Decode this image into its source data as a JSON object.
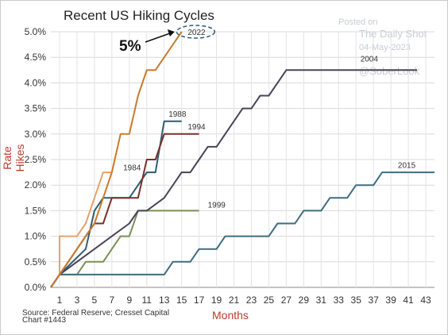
{
  "chart_data": {
    "type": "line",
    "title": "Recent US Hiking Cycles",
    "xlabel": "Months",
    "ylabel": "Rate Hikes",
    "xlim": [
      0,
      44
    ],
    "ylim": [
      0,
      5
    ],
    "x_ticks": [
      1,
      3,
      5,
      7,
      9,
      11,
      13,
      15,
      17,
      19,
      21,
      23,
      25,
      27,
      29,
      31,
      33,
      35,
      37,
      39,
      41,
      43
    ],
    "y_ticks": [
      0,
      0.5,
      1,
      1.5,
      2,
      2.5,
      3,
      3.5,
      4,
      4.5,
      5
    ],
    "y_tick_labels": [
      "0.0%",
      "0.5%",
      "1.0%",
      "1.5%",
      "2.0%",
      "2.5%",
      "3.0%",
      "3.5%",
      "4.0%",
      "4.5%",
      "5.0%"
    ],
    "grid": true,
    "series": [
      {
        "name": "1984",
        "color": "#e8a06a",
        "points": [
          [
            0,
            0
          ],
          [
            1,
            0.25
          ],
          [
            1,
            1
          ],
          [
            3,
            1
          ],
          [
            4,
            1.25
          ],
          [
            5,
            1.75
          ],
          [
            6,
            2.25
          ],
          [
            7,
            2.25
          ]
        ]
      },
      {
        "name": "1988",
        "color": "#2e5d73",
        "points": [
          [
            0,
            0
          ],
          [
            1,
            0.25
          ],
          [
            4,
            0.75
          ],
          [
            5,
            1.5
          ],
          [
            6,
            1.75
          ],
          [
            8,
            1.75
          ],
          [
            9,
            1.75
          ],
          [
            10,
            2
          ],
          [
            11,
            2.25
          ],
          [
            12,
            2.25
          ],
          [
            13,
            3.25
          ],
          [
            14,
            3.25
          ],
          [
            15,
            3.25
          ]
        ]
      },
      {
        "name": "1994",
        "color": "#7b3028",
        "points": [
          [
            0,
            0
          ],
          [
            1,
            0.25
          ],
          [
            3,
            0.75
          ],
          [
            5,
            1.25
          ],
          [
            6,
            1.25
          ],
          [
            7,
            1.75
          ],
          [
            9,
            1.75
          ],
          [
            10,
            1.75
          ],
          [
            11,
            2.5
          ],
          [
            12,
            2.5
          ],
          [
            13,
            3
          ],
          [
            14,
            3
          ],
          [
            17,
            3
          ]
        ]
      },
      {
        "name": "1999",
        "color": "#7a8f55",
        "points": [
          [
            0,
            0
          ],
          [
            1,
            0.25
          ],
          [
            3,
            0.25
          ],
          [
            4,
            0.5
          ],
          [
            5,
            0.5
          ],
          [
            6,
            0.5
          ],
          [
            7,
            0.75
          ],
          [
            8,
            1
          ],
          [
            9,
            1
          ],
          [
            10,
            1.5
          ],
          [
            12,
            1.5
          ],
          [
            17,
            1.5
          ]
        ]
      },
      {
        "name": "2004",
        "color": "#4a4458",
        "points": [
          [
            0,
            0
          ],
          [
            1,
            0.25
          ],
          [
            3,
            0.5
          ],
          [
            5,
            0.75
          ],
          [
            7,
            1
          ],
          [
            9,
            1.25
          ],
          [
            10,
            1.5
          ],
          [
            11,
            1.5
          ],
          [
            13,
            1.75
          ],
          [
            14,
            2
          ],
          [
            15,
            2.25
          ],
          [
            16,
            2.25
          ],
          [
            17,
            2.5
          ],
          [
            18,
            2.75
          ],
          [
            19,
            2.75
          ],
          [
            20,
            3
          ],
          [
            21,
            3.25
          ],
          [
            22,
            3.5
          ],
          [
            23,
            3.5
          ],
          [
            24,
            3.75
          ],
          [
            25,
            3.75
          ],
          [
            26,
            4
          ],
          [
            27,
            4.25
          ],
          [
            42,
            4.25
          ]
        ]
      },
      {
        "name": "2015",
        "color": "#3d6e80",
        "points": [
          [
            0,
            0
          ],
          [
            1,
            0.25
          ],
          [
            13,
            0.25
          ],
          [
            14,
            0.5
          ],
          [
            16,
            0.5
          ],
          [
            17,
            0.75
          ],
          [
            19,
            0.75
          ],
          [
            20,
            1
          ],
          [
            25,
            1
          ],
          [
            26,
            1.25
          ],
          [
            28,
            1.25
          ],
          [
            29,
            1.5
          ],
          [
            31,
            1.5
          ],
          [
            32,
            1.75
          ],
          [
            34,
            1.75
          ],
          [
            35,
            2
          ],
          [
            37,
            2
          ],
          [
            38,
            2.25
          ],
          [
            44,
            2.25
          ]
        ]
      },
      {
        "name": "2022",
        "color": "#c97a2a",
        "points": [
          [
            0,
            0
          ],
          [
            1,
            0.25
          ],
          [
            2,
            0.5
          ],
          [
            3,
            0.75
          ],
          [
            4,
            1
          ],
          [
            5,
            1.25
          ],
          [
            6,
            1.75
          ],
          [
            7,
            2.25
          ],
          [
            8,
            3
          ],
          [
            9,
            3
          ],
          [
            10,
            3.75
          ],
          [
            11,
            4.25
          ],
          [
            12,
            4.25
          ],
          [
            13,
            4.5
          ],
          [
            14,
            4.75
          ],
          [
            15,
            5
          ]
        ]
      }
    ],
    "label_positions": {
      "2022": [
        15.7,
        5
      ],
      "1988": [
        13.5,
        3.4
      ],
      "1994": [
        15.7,
        3.15
      ],
      "1984": [
        8.3,
        2.35
      ],
      "1999": [
        18,
        1.62
      ],
      "2004": [
        35.5,
        4.48
      ],
      "2015": [
        39.8,
        2.4
      ]
    },
    "annotations": [
      {
        "text": "5%",
        "arrow_to": [
          14.2,
          5
        ]
      }
    ]
  },
  "source": "Source: Federal Reserve; Cresset Capital",
  "chart_number": "Chart #1443",
  "watermark": {
    "posted": "Posted on",
    "site": "The Daily Shot",
    "date": "04-May-2023",
    "handle": "@SoberLook"
  }
}
